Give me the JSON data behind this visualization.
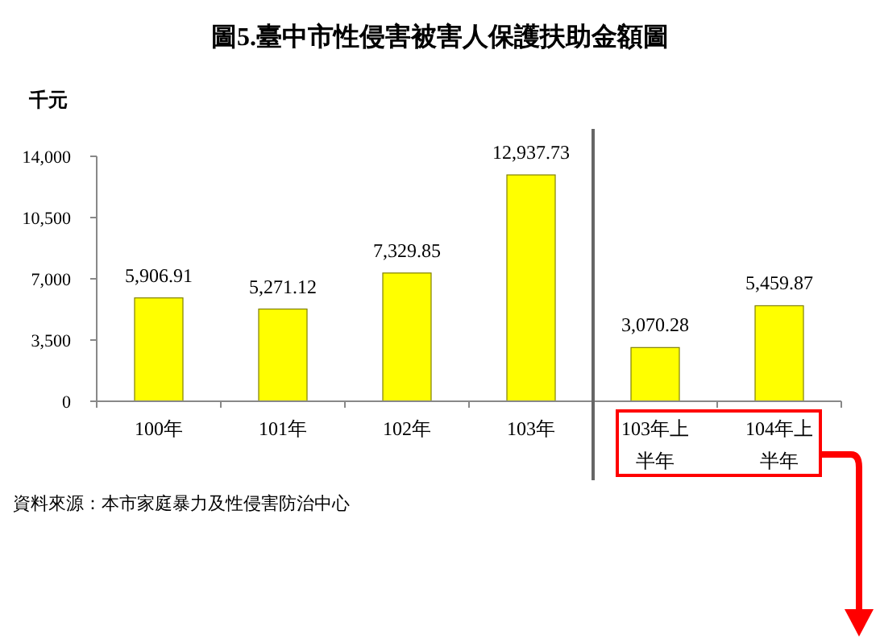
{
  "chart_data": {
    "type": "bar",
    "title": "圖5.臺中市性侵害被害人保護扶助金額圖",
    "ylabel": "千元",
    "categories": [
      "100年",
      "101年",
      "102年",
      "103年",
      "103年上半年",
      "104年上半年"
    ],
    "values": [
      5906.91,
      5271.12,
      7329.85,
      12937.73,
      3070.28,
      5459.87
    ],
    "color": "#ffff00",
    "ylim": [
      0,
      14000
    ],
    "yticks": [
      0,
      {
        "value": 3500,
        "label": "3,500"
      },
      {
        "value": 7000,
        "label": "7,000"
      },
      {
        "value": 10500,
        "label": "10,500"
      },
      {
        "value": 14000,
        "label": "14,000"
      }
    ],
    "value_labels": [
      "5,906.91",
      "5,271.12",
      "7,329.85",
      "12,937.73",
      "3,070.28",
      "5,459.87"
    ],
    "grid": false,
    "annotations": [
      "資料來源：本市家庭暴力及性侵害防治中心"
    ]
  }
}
